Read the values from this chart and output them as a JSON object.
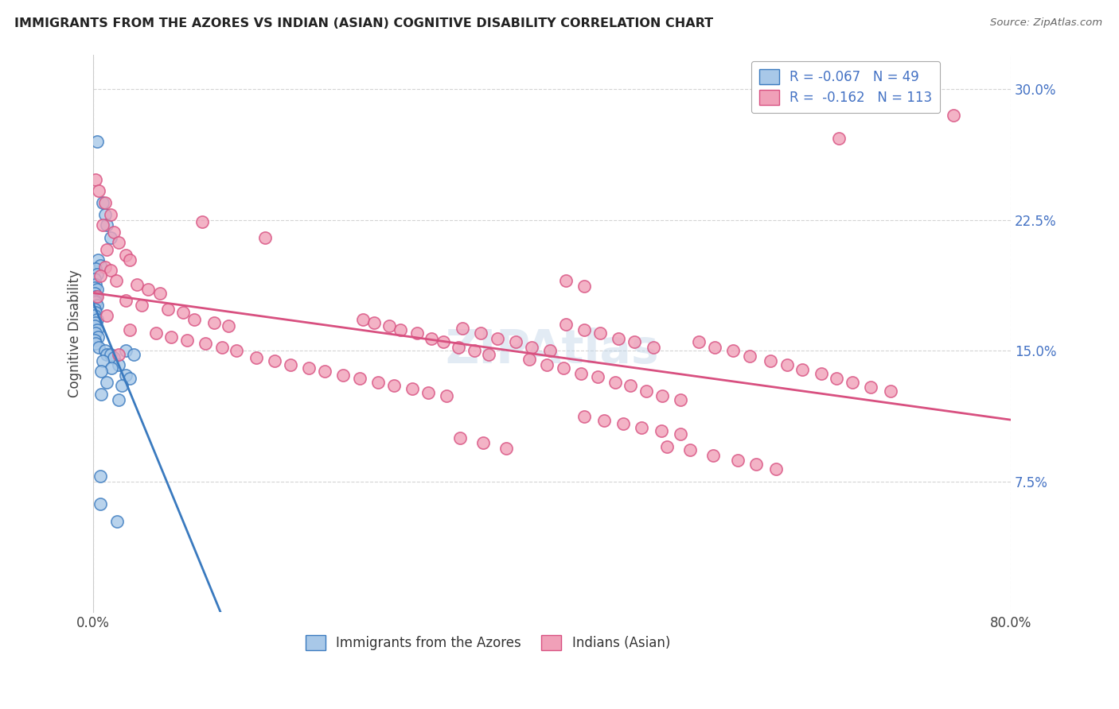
{
  "title": "IMMIGRANTS FROM THE AZORES VS INDIAN (ASIAN) COGNITIVE DISABILITY CORRELATION CHART",
  "source": "Source: ZipAtlas.com",
  "ylabel": "Cognitive Disability",
  "xlim": [
    0.0,
    0.8
  ],
  "ylim": [
    0.0,
    0.32
  ],
  "yticks": [
    0.075,
    0.15,
    0.225,
    0.3
  ],
  "ytick_labels": [
    "7.5%",
    "15.0%",
    "22.5%",
    "30.0%"
  ],
  "color_blue": "#a8c8e8",
  "color_pink": "#f0a0b8",
  "line_blue_solid": "#3a7abf",
  "line_blue_dash": "#80b8d8",
  "line_pink": "#d85080",
  "background_color": "#ffffff",
  "grid_color": "#d0d0d0",
  "azores_points": [
    [
      0.003,
      0.27
    ],
    [
      0.008,
      0.235
    ],
    [
      0.01,
      0.228
    ],
    [
      0.012,
      0.222
    ],
    [
      0.015,
      0.215
    ],
    [
      0.004,
      0.202
    ],
    [
      0.006,
      0.199
    ],
    [
      0.002,
      0.197
    ],
    [
      0.003,
      0.194
    ],
    [
      0.001,
      0.191
    ],
    [
      0.002,
      0.188
    ],
    [
      0.001,
      0.186
    ],
    [
      0.003,
      0.185
    ],
    [
      0.001,
      0.183
    ],
    [
      0.002,
      0.181
    ],
    [
      0.001,
      0.179
    ],
    [
      0.002,
      0.178
    ],
    [
      0.003,
      0.176
    ],
    [
      0.001,
      0.174
    ],
    [
      0.002,
      0.172
    ],
    [
      0.001,
      0.17
    ],
    [
      0.003,
      0.168
    ],
    [
      0.002,
      0.166
    ],
    [
      0.001,
      0.164
    ],
    [
      0.003,
      0.162
    ],
    [
      0.002,
      0.16
    ],
    [
      0.004,
      0.158
    ],
    [
      0.001,
      0.156
    ],
    [
      0.002,
      0.154
    ],
    [
      0.005,
      0.152
    ],
    [
      0.01,
      0.15
    ],
    [
      0.012,
      0.148
    ],
    [
      0.015,
      0.148
    ],
    [
      0.018,
      0.146
    ],
    [
      0.008,
      0.144
    ],
    [
      0.022,
      0.142
    ],
    [
      0.016,
      0.14
    ],
    [
      0.007,
      0.138
    ],
    [
      0.028,
      0.136
    ],
    [
      0.032,
      0.134
    ],
    [
      0.012,
      0.132
    ],
    [
      0.028,
      0.15
    ],
    [
      0.035,
      0.148
    ],
    [
      0.025,
      0.13
    ],
    [
      0.007,
      0.125
    ],
    [
      0.022,
      0.122
    ],
    [
      0.006,
      0.078
    ],
    [
      0.006,
      0.062
    ],
    [
      0.021,
      0.052
    ]
  ],
  "indian_points": [
    [
      0.002,
      0.248
    ],
    [
      0.005,
      0.242
    ],
    [
      0.01,
      0.235
    ],
    [
      0.015,
      0.228
    ],
    [
      0.095,
      0.224
    ],
    [
      0.008,
      0.222
    ],
    [
      0.018,
      0.218
    ],
    [
      0.15,
      0.215
    ],
    [
      0.022,
      0.212
    ],
    [
      0.012,
      0.208
    ],
    [
      0.028,
      0.205
    ],
    [
      0.032,
      0.202
    ],
    [
      0.01,
      0.198
    ],
    [
      0.015,
      0.196
    ],
    [
      0.006,
      0.193
    ],
    [
      0.02,
      0.19
    ],
    [
      0.038,
      0.188
    ],
    [
      0.048,
      0.185
    ],
    [
      0.058,
      0.183
    ],
    [
      0.003,
      0.181
    ],
    [
      0.028,
      0.179
    ],
    [
      0.042,
      0.176
    ],
    [
      0.065,
      0.174
    ],
    [
      0.078,
      0.172
    ],
    [
      0.012,
      0.17
    ],
    [
      0.088,
      0.168
    ],
    [
      0.105,
      0.166
    ],
    [
      0.118,
      0.164
    ],
    [
      0.032,
      0.162
    ],
    [
      0.055,
      0.16
    ],
    [
      0.068,
      0.158
    ],
    [
      0.082,
      0.156
    ],
    [
      0.098,
      0.154
    ],
    [
      0.112,
      0.152
    ],
    [
      0.125,
      0.15
    ],
    [
      0.022,
      0.148
    ],
    [
      0.142,
      0.146
    ],
    [
      0.158,
      0.144
    ],
    [
      0.172,
      0.142
    ],
    [
      0.188,
      0.14
    ],
    [
      0.202,
      0.138
    ],
    [
      0.218,
      0.136
    ],
    [
      0.232,
      0.134
    ],
    [
      0.248,
      0.132
    ],
    [
      0.262,
      0.13
    ],
    [
      0.278,
      0.128
    ],
    [
      0.292,
      0.126
    ],
    [
      0.308,
      0.124
    ],
    [
      0.322,
      0.163
    ],
    [
      0.338,
      0.16
    ],
    [
      0.352,
      0.157
    ],
    [
      0.368,
      0.155
    ],
    [
      0.382,
      0.152
    ],
    [
      0.398,
      0.15
    ],
    [
      0.412,
      0.165
    ],
    [
      0.428,
      0.162
    ],
    [
      0.442,
      0.16
    ],
    [
      0.458,
      0.157
    ],
    [
      0.472,
      0.155
    ],
    [
      0.488,
      0.152
    ],
    [
      0.235,
      0.168
    ],
    [
      0.245,
      0.166
    ],
    [
      0.258,
      0.164
    ],
    [
      0.268,
      0.162
    ],
    [
      0.282,
      0.16
    ],
    [
      0.295,
      0.157
    ],
    [
      0.305,
      0.155
    ],
    [
      0.318,
      0.152
    ],
    [
      0.332,
      0.15
    ],
    [
      0.345,
      0.148
    ],
    [
      0.38,
      0.145
    ],
    [
      0.395,
      0.142
    ],
    [
      0.41,
      0.14
    ],
    [
      0.425,
      0.137
    ],
    [
      0.44,
      0.135
    ],
    [
      0.455,
      0.132
    ],
    [
      0.468,
      0.13
    ],
    [
      0.482,
      0.127
    ],
    [
      0.496,
      0.124
    ],
    [
      0.512,
      0.122
    ],
    [
      0.428,
      0.112
    ],
    [
      0.445,
      0.11
    ],
    [
      0.462,
      0.108
    ],
    [
      0.478,
      0.106
    ],
    [
      0.495,
      0.104
    ],
    [
      0.512,
      0.102
    ],
    [
      0.528,
      0.155
    ],
    [
      0.542,
      0.152
    ],
    [
      0.558,
      0.15
    ],
    [
      0.572,
      0.147
    ],
    [
      0.59,
      0.144
    ],
    [
      0.605,
      0.142
    ],
    [
      0.618,
      0.139
    ],
    [
      0.635,
      0.137
    ],
    [
      0.648,
      0.134
    ],
    [
      0.662,
      0.132
    ],
    [
      0.678,
      0.129
    ],
    [
      0.695,
      0.127
    ],
    [
      0.5,
      0.095
    ],
    [
      0.52,
      0.093
    ],
    [
      0.54,
      0.09
    ],
    [
      0.562,
      0.087
    ],
    [
      0.578,
      0.085
    ],
    [
      0.595,
      0.082
    ],
    [
      0.75,
      0.285
    ],
    [
      0.65,
      0.272
    ],
    [
      0.412,
      0.19
    ],
    [
      0.428,
      0.187
    ],
    [
      0.32,
      0.1
    ],
    [
      0.34,
      0.097
    ],
    [
      0.36,
      0.094
    ]
  ]
}
